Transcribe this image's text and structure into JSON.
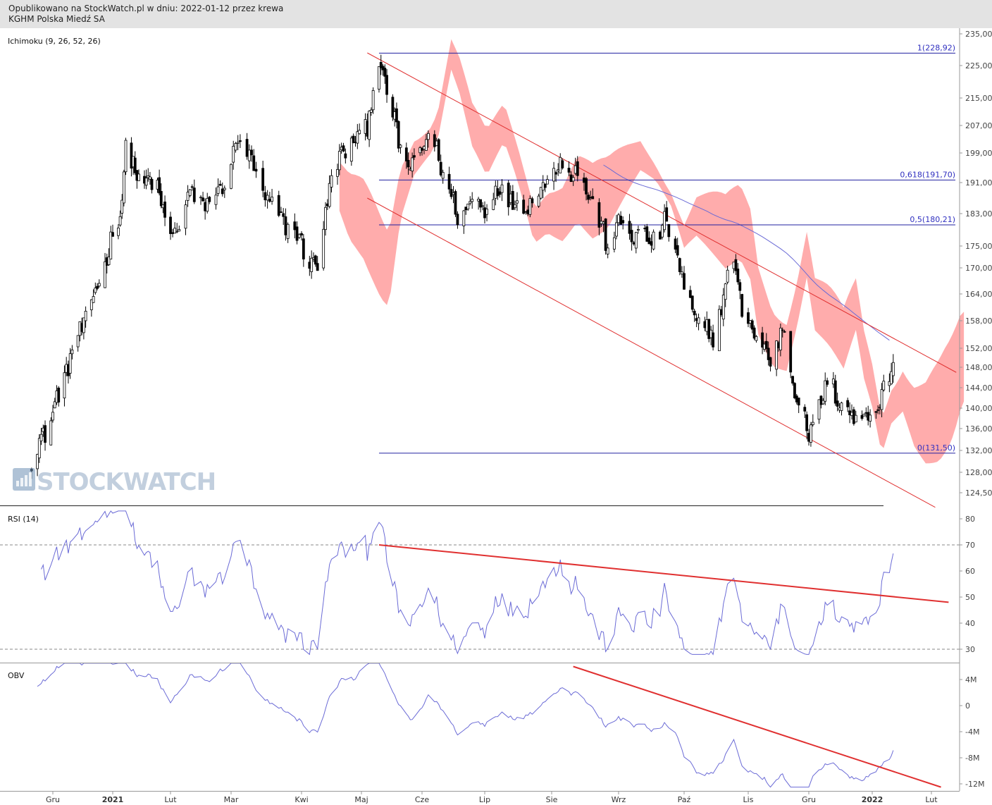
{
  "header": {
    "line1": "Opublikowano na StockWatch.pl w dniu: 2022-01-12 przez krewa",
    "line2": "KGHM Polska Miedź SA"
  },
  "watermark": "STOCKWATCH",
  "colors": {
    "candle": "#000000",
    "cloud": "#ff9e9e",
    "trend": "#e03030",
    "indicator": "#6b6bd6",
    "fib": "#2020a0",
    "grid_dash": "#888888"
  },
  "chart_data": {
    "type": "candlestick",
    "panels": [
      {
        "name": "price",
        "label": "Ichimoku (9, 26, 52, 26)",
        "y_ticks": [
          "235,00",
          "225,00",
          "215,00",
          "207,00",
          "199,00",
          "191,00",
          "183,00",
          "175,00",
          "170,00",
          "164,00",
          "158,00",
          "152,00",
          "148,00",
          "144,00",
          "140,00",
          "136,00",
          "132,00",
          "128,00",
          "124,50"
        ],
        "fib_levels": [
          {
            "label": "1(228,92)",
            "value": 228.92
          },
          {
            "label": "0,618(191,70)",
            "value": 191.7
          },
          {
            "label": "0,5(180,21)",
            "value": 180.21
          },
          {
            "label": "0(131,50)",
            "value": 131.5
          }
        ],
        "close_anchors": [
          [
            "2020-11-20",
            130
          ],
          [
            "2020-12-01",
            139
          ],
          [
            "2020-12-10",
            150
          ],
          [
            "2020-12-22",
            163
          ],
          [
            "2021-01-05",
            183
          ],
          [
            "2021-01-08",
            200
          ],
          [
            "2021-01-15",
            192
          ],
          [
            "2021-01-25",
            190
          ],
          [
            "2021-02-01",
            176
          ],
          [
            "2021-02-10",
            188
          ],
          [
            "2021-02-18",
            185
          ],
          [
            "2021-02-28",
            193
          ],
          [
            "2021-03-05",
            205
          ],
          [
            "2021-03-12",
            192
          ],
          [
            "2021-03-20",
            183
          ],
          [
            "2021-03-27",
            180
          ],
          [
            "2021-04-05",
            172
          ],
          [
            "2021-04-09",
            170
          ],
          [
            "2021-04-15",
            190
          ],
          [
            "2021-04-22",
            200
          ],
          [
            "2021-05-01",
            204
          ],
          [
            "2021-05-04",
            208
          ],
          [
            "2021-05-10",
            226
          ],
          [
            "2021-05-14",
            218
          ],
          [
            "2021-05-20",
            202
          ],
          [
            "2021-05-27",
            194
          ],
          [
            "2021-06-04",
            205
          ],
          [
            "2021-06-10",
            196
          ],
          [
            "2021-06-18",
            182
          ],
          [
            "2021-06-24",
            186
          ],
          [
            "2021-07-01",
            185
          ],
          [
            "2021-07-08",
            190
          ],
          [
            "2021-07-15",
            185
          ],
          [
            "2021-07-22",
            186
          ],
          [
            "2021-07-30",
            192
          ],
          [
            "2021-08-06",
            197
          ],
          [
            "2021-08-13",
            193
          ],
          [
            "2021-08-20",
            186
          ],
          [
            "2021-08-26",
            176
          ],
          [
            "2021-09-01",
            180
          ],
          [
            "2021-09-08",
            178
          ],
          [
            "2021-09-15",
            176
          ],
          [
            "2021-09-22",
            180
          ],
          [
            "2021-09-27",
            176
          ],
          [
            "2021-10-01",
            164
          ],
          [
            "2021-10-08",
            157
          ],
          [
            "2021-10-15",
            155
          ],
          [
            "2021-10-20",
            163
          ],
          [
            "2021-10-25",
            173
          ],
          [
            "2021-10-29",
            160
          ],
          [
            "2021-11-05",
            155
          ],
          [
            "2021-11-12",
            149
          ],
          [
            "2021-11-18",
            157
          ],
          [
            "2021-11-22",
            147
          ],
          [
            "2021-11-26",
            142
          ],
          [
            "2021-12-01",
            134
          ],
          [
            "2021-12-06",
            141
          ],
          [
            "2021-12-12",
            145
          ],
          [
            "2021-12-18",
            140
          ],
          [
            "2021-12-24",
            138
          ],
          [
            "2021-12-31",
            139
          ],
          [
            "2022-01-06",
            142
          ],
          [
            "2022-01-10",
            146
          ],
          [
            "2022-01-12",
            149
          ]
        ],
        "ichimoku_cloud_span": {
          "from": "2021-04-20",
          "to": "2022-02-18"
        },
        "trendlines": [
          {
            "from": [
              "2021-05-04",
              229
            ],
            "to": [
              "2022-02-14",
              147
            ]
          },
          {
            "from": [
              "2021-05-04",
              187
            ],
            "to": [
              "2022-02-03",
              122
            ]
          }
        ]
      },
      {
        "name": "rsi",
        "label": "RSI (14)",
        "y_ticks": [
          "80",
          "70",
          "60",
          "50",
          "40",
          "30"
        ],
        "reference_lines": [
          70,
          30
        ],
        "trendline": {
          "from": [
            "2021-05-10",
            70
          ],
          "to": [
            "2022-02-10",
            48
          ]
        }
      },
      {
        "name": "obv",
        "label": "OBV",
        "y_ticks": [
          "4M",
          "0",
          "-4M",
          "-8M",
          "-12M"
        ],
        "trendline": {
          "from": [
            "2021-08-11",
            6
          ],
          "to": [
            "2022-02-06",
            -12.5
          ]
        }
      }
    ],
    "x_ticks": [
      "Gru",
      "2021",
      "Lut",
      "Mar",
      "Kwi",
      "Maj",
      "Cze",
      "Lip",
      "Sie",
      "Wrz",
      "Paź",
      "Lis",
      "Gru",
      "2022",
      "Lut"
    ]
  }
}
